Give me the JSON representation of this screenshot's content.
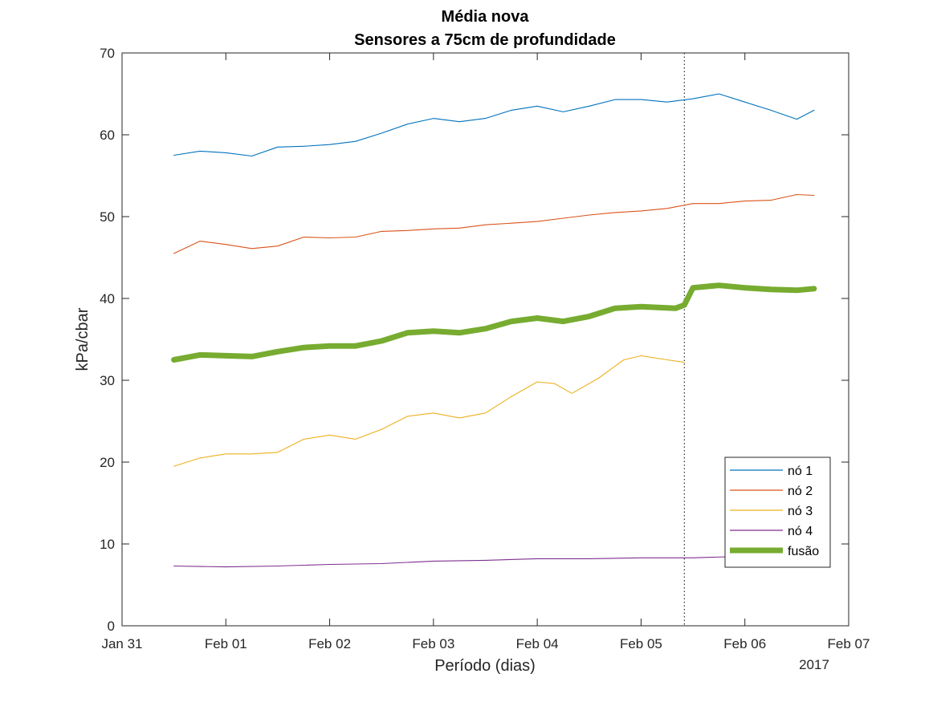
{
  "chart_data": {
    "type": "line",
    "title": "Média nova",
    "subtitle": "Sensores a 75cm de profundidade",
    "xlabel": "Período (dias)",
    "ylabel": "kPa/cbar",
    "x_tick_labels": [
      "Jan 31",
      "Feb 01",
      "Feb 02",
      "Feb 03",
      "Feb 04",
      "Feb 05",
      "Feb 06",
      "Feb 07"
    ],
    "x_year_label": "2017",
    "xlim": [
      "2017-01-31",
      "2017-02-07"
    ],
    "ylim": [
      0,
      70
    ],
    "y_ticks": [
      0,
      10,
      20,
      30,
      40,
      50,
      60,
      70
    ],
    "grid": false,
    "legend_position": "bottom-right",
    "vertical_marker": {
      "x": "2017-02-05 10:00",
      "style": "dotted"
    },
    "series": [
      {
        "name": "nó 1",
        "color": "#0072BD",
        "x": [
          "2017-01-31 12:00",
          "2017-01-31 18:00",
          "2017-02-01 00:00",
          "2017-02-01 06:00",
          "2017-02-01 12:00",
          "2017-02-01 18:00",
          "2017-02-02 00:00",
          "2017-02-02 06:00",
          "2017-02-02 12:00",
          "2017-02-02 18:00",
          "2017-02-03 00:00",
          "2017-02-03 06:00",
          "2017-02-03 12:00",
          "2017-02-03 18:00",
          "2017-02-04 00:00",
          "2017-02-04 06:00",
          "2017-02-04 12:00",
          "2017-02-04 18:00",
          "2017-02-05 00:00",
          "2017-02-05 06:00",
          "2017-02-05 12:00",
          "2017-02-05 18:00",
          "2017-02-06 00:00",
          "2017-02-06 06:00",
          "2017-02-06 12:00",
          "2017-02-06 16:00"
        ],
        "values": [
          57.5,
          58.0,
          57.8,
          57.4,
          58.5,
          58.6,
          58.8,
          59.2,
          60.2,
          61.3,
          62.0,
          61.6,
          62.0,
          63.0,
          63.5,
          62.8,
          63.5,
          64.3,
          64.3,
          64.0,
          64.4,
          65.0,
          64.0,
          63.0,
          61.9,
          63.0
        ]
      },
      {
        "name": "nó 2",
        "color": "#D95319",
        "x": [
          "2017-01-31 12:00",
          "2017-01-31 18:00",
          "2017-02-01 00:00",
          "2017-02-01 06:00",
          "2017-02-01 12:00",
          "2017-02-01 18:00",
          "2017-02-02 00:00",
          "2017-02-02 06:00",
          "2017-02-02 12:00",
          "2017-02-02 18:00",
          "2017-02-03 00:00",
          "2017-02-03 06:00",
          "2017-02-03 12:00",
          "2017-02-03 18:00",
          "2017-02-04 00:00",
          "2017-02-04 06:00",
          "2017-02-04 12:00",
          "2017-02-04 18:00",
          "2017-02-05 00:00",
          "2017-02-05 06:00",
          "2017-02-05 12:00",
          "2017-02-05 18:00",
          "2017-02-06 00:00",
          "2017-02-06 06:00",
          "2017-02-06 12:00",
          "2017-02-06 16:00"
        ],
        "values": [
          45.5,
          47.0,
          46.6,
          46.1,
          46.4,
          47.5,
          47.4,
          47.5,
          48.2,
          48.3,
          48.5,
          48.6,
          49.0,
          49.2,
          49.4,
          49.8,
          50.2,
          50.5,
          50.7,
          51.0,
          51.6,
          51.6,
          51.9,
          52.0,
          52.7,
          52.6
        ]
      },
      {
        "name": "nó 3",
        "color": "#EDB120",
        "x": [
          "2017-01-31 12:00",
          "2017-01-31 18:00",
          "2017-02-01 00:00",
          "2017-02-01 06:00",
          "2017-02-01 12:00",
          "2017-02-01 18:00",
          "2017-02-02 00:00",
          "2017-02-02 06:00",
          "2017-02-02 12:00",
          "2017-02-02 18:00",
          "2017-02-03 00:00",
          "2017-02-03 06:00",
          "2017-02-03 12:00",
          "2017-02-03 18:00",
          "2017-02-04 00:00",
          "2017-02-04 04:00",
          "2017-02-04 08:00",
          "2017-02-04 14:00",
          "2017-02-04 20:00",
          "2017-02-05 00:00",
          "2017-02-05 06:00",
          "2017-02-05 10:00"
        ],
        "values": [
          19.5,
          20.5,
          21.0,
          21.0,
          21.2,
          22.8,
          23.3,
          22.8,
          24.0,
          25.6,
          26.0,
          25.4,
          26.0,
          28.0,
          29.8,
          29.6,
          28.4,
          30.2,
          32.5,
          33.0,
          32.5,
          32.2
        ]
      },
      {
        "name": "nó 4",
        "color": "#7E2F8E",
        "x": [
          "2017-01-31 12:00",
          "2017-02-01 00:00",
          "2017-02-01 12:00",
          "2017-02-02 00:00",
          "2017-02-02 12:00",
          "2017-02-03 00:00",
          "2017-02-03 12:00",
          "2017-02-04 00:00",
          "2017-02-04 12:00",
          "2017-02-05 00:00",
          "2017-02-05 12:00",
          "2017-02-06 00:00",
          "2017-02-06 12:00",
          "2017-02-06 16:00"
        ],
        "values": [
          7.3,
          7.2,
          7.3,
          7.5,
          7.6,
          7.9,
          8.0,
          8.2,
          8.2,
          8.3,
          8.3,
          8.5,
          8.8,
          8.9
        ]
      },
      {
        "name": "fusão",
        "color": "#77AC30",
        "x": [
          "2017-01-31 12:00",
          "2017-01-31 18:00",
          "2017-02-01 00:00",
          "2017-02-01 06:00",
          "2017-02-01 12:00",
          "2017-02-01 18:00",
          "2017-02-02 00:00",
          "2017-02-02 06:00",
          "2017-02-02 12:00",
          "2017-02-02 18:00",
          "2017-02-03 00:00",
          "2017-02-03 06:00",
          "2017-02-03 12:00",
          "2017-02-03 18:00",
          "2017-02-04 00:00",
          "2017-02-04 06:00",
          "2017-02-04 12:00",
          "2017-02-04 18:00",
          "2017-02-05 00:00",
          "2017-02-05 08:00",
          "2017-02-05 10:00",
          "2017-02-05 12:00",
          "2017-02-05 18:00",
          "2017-02-06 00:00",
          "2017-02-06 06:00",
          "2017-02-06 12:00",
          "2017-02-06 16:00"
        ],
        "values": [
          32.5,
          33.1,
          33.0,
          32.9,
          33.5,
          34.0,
          34.2,
          34.2,
          34.8,
          35.8,
          36.0,
          35.8,
          36.3,
          37.2,
          37.6,
          37.2,
          37.8,
          38.8,
          39.0,
          38.8,
          39.2,
          41.3,
          41.6,
          41.3,
          41.1,
          41.0,
          41.2
        ]
      }
    ]
  }
}
